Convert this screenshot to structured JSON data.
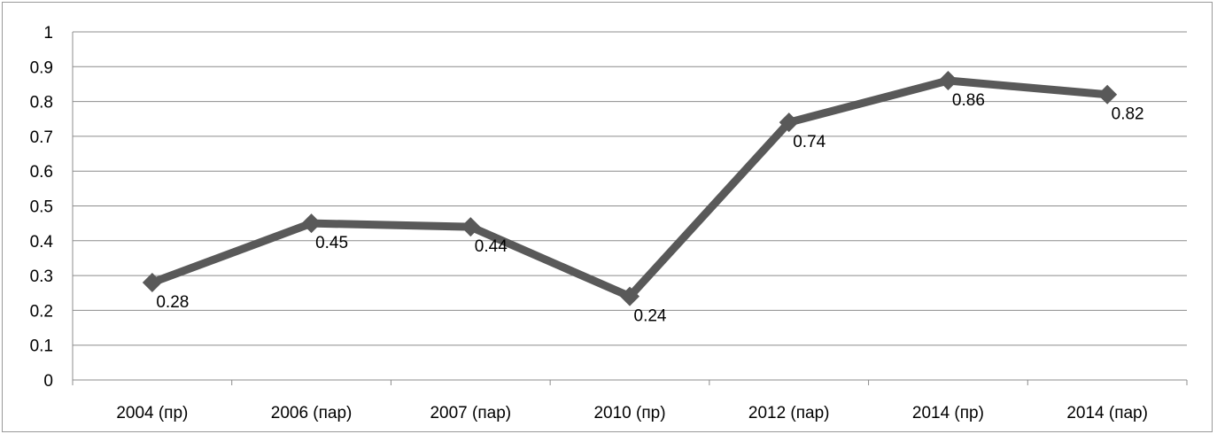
{
  "chart_data": {
    "type": "line",
    "categories": [
      "2004 (пр)",
      "2006 (пар)",
      "2007 (пар)",
      "2010 (пр)",
      "2012 (пар)",
      "2014 (пр)",
      "2014 (пар)"
    ],
    "series": [
      {
        "values": [
          0.28,
          0.45,
          0.44,
          0.24,
          0.74,
          0.86,
          0.82
        ],
        "color": "#595959",
        "marker": "diamond"
      }
    ],
    "data_labels": [
      "0.28",
      "0.45",
      "0.44",
      "0.24",
      "0.74",
      "0.86",
      "0.82"
    ],
    "y_ticks": [
      "0",
      "0.1",
      "0.2",
      "0.3",
      "0.4",
      "0.5",
      "0.6",
      "0.7",
      "0.8",
      "0.9",
      "1"
    ],
    "ylim": [
      0,
      1
    ],
    "grid": true,
    "legend": "none",
    "gridline_color": "#8c8c8c"
  }
}
